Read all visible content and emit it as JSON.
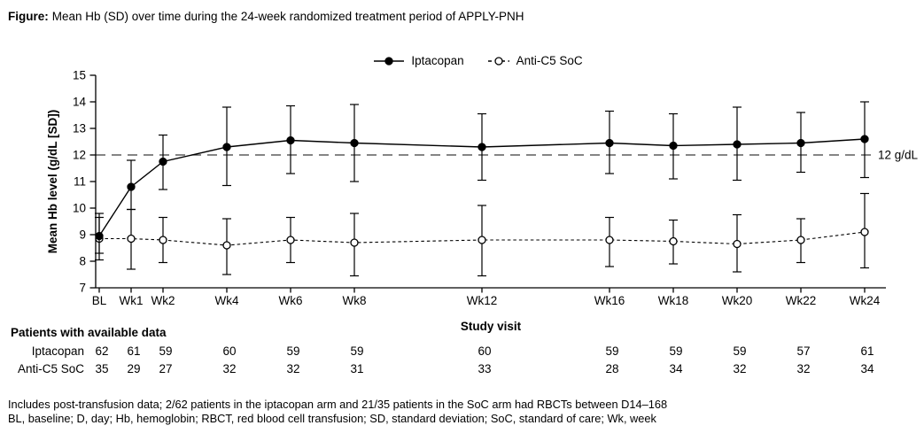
{
  "figure": {
    "label": "Figure:",
    "caption": "Mean Hb (SD) over time during the 24-week randomized treatment period of APPLY-PNH"
  },
  "chart_data": {
    "type": "line",
    "title": "Mean Hb (SD) over time during the 24-week randomized treatment period of APPLY-PNH",
    "grid": false,
    "legend_position": "top-center",
    "x_axis": {
      "label": "Study visit",
      "tick_labels": [
        "BL",
        "Wk1",
        "Wk2",
        "Wk4",
        "Wk6",
        "Wk8",
        "Wk12",
        "Wk16",
        "Wk18",
        "Wk20",
        "Wk22",
        "Wk24"
      ],
      "tick_weeks": [
        0,
        1,
        2,
        4,
        6,
        8,
        12,
        16,
        18,
        20,
        22,
        24
      ]
    },
    "y_axis": {
      "label": "Mean Hb level (g/dL [SD])",
      "min": 7,
      "max": 15,
      "ticks": [
        7,
        8,
        9,
        10,
        11,
        12,
        13,
        14,
        15
      ]
    },
    "reference_line": {
      "value": 12,
      "label": "12 g/dL"
    },
    "series": [
      {
        "name": "Iptacopan",
        "marker": "filled-circle",
        "line_style": "solid",
        "color": "#000000",
        "mean": [
          8.95,
          10.8,
          11.75,
          12.3,
          12.55,
          12.45,
          12.3,
          12.45,
          12.35,
          12.4,
          12.45,
          12.6
        ],
        "sd_lower": [
          8.3,
          9.95,
          10.7,
          10.85,
          11.3,
          11.0,
          11.05,
          11.3,
          11.1,
          11.05,
          11.35,
          11.15
        ],
        "sd_upper": [
          9.65,
          11.8,
          12.75,
          13.8,
          13.85,
          13.9,
          13.55,
          13.65,
          13.55,
          13.8,
          13.6,
          14.0
        ]
      },
      {
        "name": "Anti-C5 SoC",
        "marker": "open-circle",
        "line_style": "dashed",
        "color": "#000000",
        "mean": [
          8.85,
          8.85,
          8.8,
          8.6,
          8.8,
          8.7,
          8.8,
          8.8,
          8.75,
          8.65,
          8.8,
          9.1
        ],
        "sd_lower": [
          8.05,
          7.7,
          7.95,
          7.5,
          7.95,
          7.45,
          7.45,
          7.8,
          7.9,
          7.6,
          7.95,
          7.75
        ],
        "sd_upper": [
          9.8,
          9.95,
          9.65,
          9.6,
          9.65,
          9.8,
          10.1,
          9.65,
          9.55,
          9.75,
          9.6,
          10.55
        ]
      }
    ]
  },
  "patients_table": {
    "heading": "Patients with available data",
    "rows": [
      {
        "label": "Iptacopan",
        "counts": [
          62,
          61,
          59,
          60,
          59,
          59,
          60,
          59,
          59,
          59,
          57,
          61
        ]
      },
      {
        "label": "Anti-C5 SoC",
        "counts": [
          35,
          29,
          27,
          32,
          32,
          31,
          33,
          28,
          34,
          32,
          32,
          34
        ]
      }
    ]
  },
  "footnotes": {
    "line1": "Includes post-transfusion data; 2/62 patients in the iptacopan arm and 21/35 patients in the SoC arm had RBCTs between D14–168",
    "line2": "BL, baseline; D, day; Hb, hemoglobin; RBCT, red blood cell transfusion; SD, standard deviation; SoC, standard of care; Wk, week"
  },
  "colors": {
    "foreground": "#000000",
    "background": "#ffffff",
    "reference_line": "#3c3c3c"
  }
}
